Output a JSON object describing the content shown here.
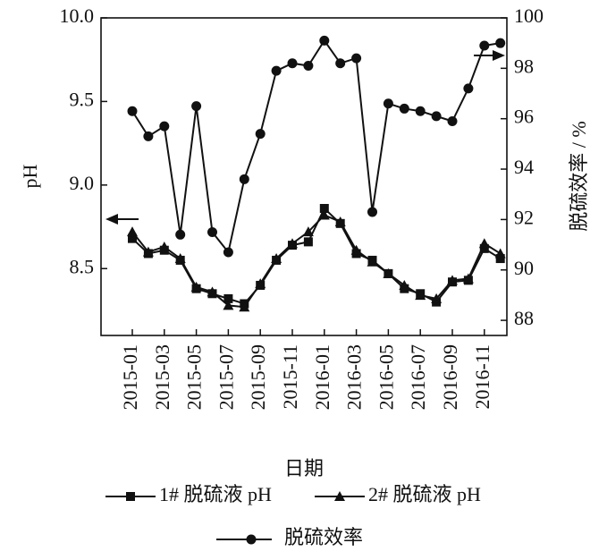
{
  "chart_data": {
    "type": "line",
    "x_label": "日期",
    "y_label": "pH",
    "y2_label": "脱硫效率 / %",
    "categories": [
      "2015-01",
      null,
      "2015-03",
      null,
      "2015-05",
      null,
      "2015-07",
      null,
      "2015-09",
      null,
      "2015-11",
      null,
      "2016-01",
      null,
      "2016-03",
      null,
      "2016-05",
      null,
      "2016-07",
      null,
      "2016-09",
      null,
      "2016-11",
      null
    ],
    "ylim": [
      8.1,
      10.0
    ],
    "yticks": [
      {
        "value": 10,
        "label": "10.0"
      },
      9.5,
      {
        "value": 9,
        "label": "9.0"
      },
      8.5
    ],
    "y2lim": [
      87.4,
      100
    ],
    "y2ticks": [
      88,
      90,
      92,
      94,
      96,
      98,
      100
    ],
    "series": [
      {
        "name": "1# 脱硫液 pH",
        "color": "#111111",
        "marker": "square",
        "values": [
          8.68,
          8.59,
          8.61,
          8.55,
          8.38,
          8.35,
          8.32,
          8.29,
          8.4,
          8.55,
          8.64,
          8.66,
          8.86,
          8.77,
          8.59,
          8.55,
          8.47,
          8.38,
          8.35,
          8.3,
          8.42,
          8.43,
          8.62,
          8.56
        ]
      },
      {
        "name": "2# 脱硫液 pH",
        "color": "#111111",
        "marker": "triangle",
        "values": [
          8.72,
          8.6,
          8.63,
          8.56,
          8.39,
          8.36,
          8.28,
          8.27,
          8.41,
          8.56,
          8.65,
          8.72,
          8.82,
          8.78,
          8.61,
          8.54,
          8.47,
          8.4,
          8.34,
          8.32,
          8.43,
          8.44,
          8.65,
          8.59
        ]
      },
      {
        "name": "脱硫效率",
        "color": "#111111",
        "marker": "circle",
        "axis": "y2",
        "values": [
          96.3,
          95.3,
          95.7,
          91.4,
          96.5,
          91.5,
          90.7,
          93.6,
          95.4,
          97.9,
          98.2,
          98.1,
          99.1,
          98.2,
          98.4,
          92.3,
          96.6,
          96.4,
          96.3,
          96.1,
          95.9,
          97.2,
          98.9,
          99.0
        ]
      }
    ]
  }
}
